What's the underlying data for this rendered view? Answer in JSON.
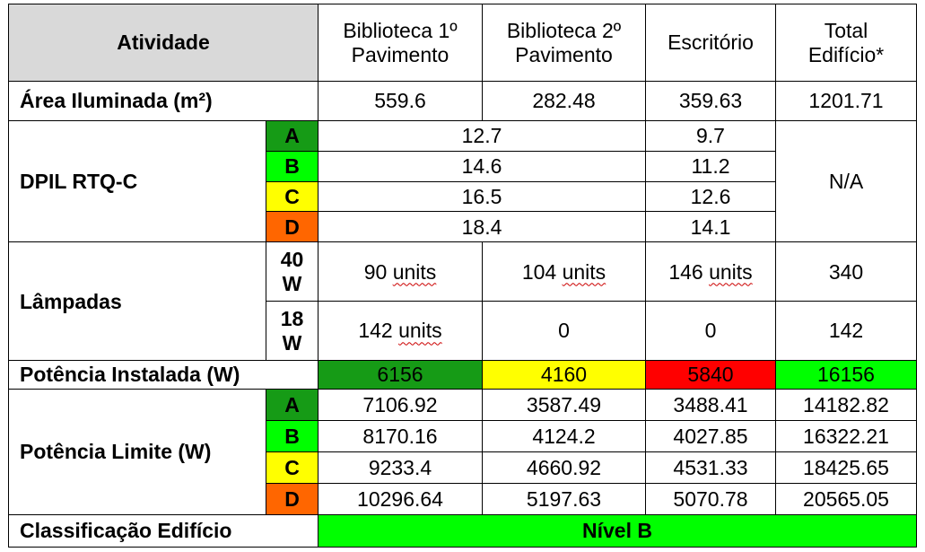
{
  "colors": {
    "header_bg": "#d9d9d9",
    "level_A": "#169b16",
    "level_B": "#00ff00",
    "level_C": "#ffff00",
    "level_D": "#ff6600",
    "installed_biblio1": "#169b16",
    "installed_biblio2": "#ffff00",
    "installed_escritorio": "#ff0000",
    "installed_total": "#00ff00",
    "classification": "#00ff00"
  },
  "header": {
    "atividade": "Atividade",
    "biblio1_line1": "Biblioteca 1º",
    "biblio1_line2": "Pavimento",
    "biblio2_line1": "Biblioteca 2º",
    "biblio2_line2": "Pavimento",
    "escritorio": "Escritório",
    "total_line1": "Total",
    "total_line2": "Edifício*"
  },
  "area": {
    "label": "Área Iluminada (m²)",
    "biblio1": "559.6",
    "biblio2": "282.48",
    "escritorio": "359.63",
    "total": "1201.71"
  },
  "dpil": {
    "label": "DPIL RTQ-C",
    "total": "N/A",
    "rows": [
      {
        "level": "A",
        "biblioteca": "12.7",
        "escritorio": "9.7"
      },
      {
        "level": "B",
        "biblioteca": "14.6",
        "escritorio": "11.2"
      },
      {
        "level": "C",
        "biblioteca": "16.5",
        "escritorio": "12.6"
      },
      {
        "level": "D",
        "biblioteca": "18.4",
        "escritorio": "14.1"
      }
    ]
  },
  "lampadas": {
    "label": "Lâmpadas",
    "rows": [
      {
        "power_line1": "40",
        "power_line2": "W",
        "biblio1_num": "90",
        "biblio1_unit": "units",
        "biblio2_num": "104",
        "biblio2_unit": "units",
        "escritorio_num": "146",
        "escritorio_unit": "units",
        "total": "340"
      },
      {
        "power_line1": "18",
        "power_line2": "W",
        "biblio1_num": "142",
        "biblio1_unit": "units",
        "biblio2": "0",
        "escritorio": "0",
        "total": "142"
      }
    ]
  },
  "potencia_instalada": {
    "label": "Potência Instalada (W)",
    "biblio1": "6156",
    "biblio2": "4160",
    "escritorio": "5840",
    "total": "16156"
  },
  "potencia_limite": {
    "label": "Potência Limite (W)",
    "rows": [
      {
        "level": "A",
        "biblio1": "7106.92",
        "biblio2": "3587.49",
        "escritorio": "3488.41",
        "total": "14182.82"
      },
      {
        "level": "B",
        "biblio1": "8170.16",
        "biblio2": "4124.2",
        "escritorio": "4027.85",
        "total": "16322.21"
      },
      {
        "level": "C",
        "biblio1": "9233.4",
        "biblio2": "4660.92",
        "escritorio": "4531.33",
        "total": "18425.65"
      },
      {
        "level": "D",
        "biblio1": "10296.64",
        "biblio2": "5197.63",
        "escritorio": "5070.78",
        "total": "20565.05"
      }
    ]
  },
  "classificacao": {
    "label": "Classificação Edifício",
    "value": "Nível B"
  }
}
